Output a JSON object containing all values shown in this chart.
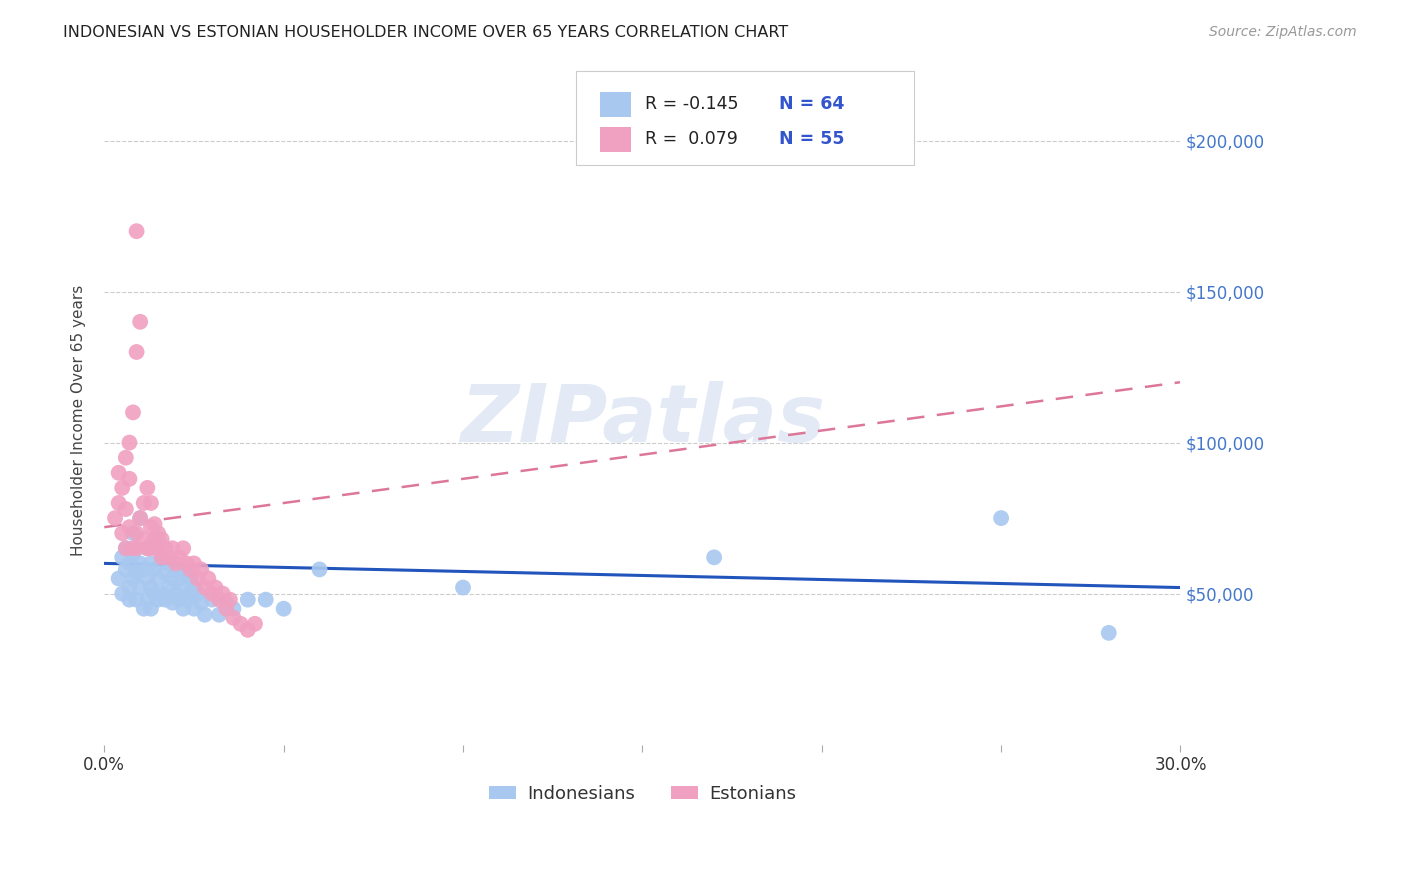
{
  "title": "INDONESIAN VS ESTONIAN HOUSEHOLDER INCOME OVER 65 YEARS CORRELATION CHART",
  "source": "Source: ZipAtlas.com",
  "ylabel": "Householder Income Over 65 years",
  "xlim": [
    0.0,
    0.3
  ],
  "ylim": [
    0,
    215000
  ],
  "yticks": [
    50000,
    100000,
    150000,
    200000
  ],
  "ytick_labels": [
    "$50,000",
    "$100,000",
    "$150,000",
    "$200,000"
  ],
  "indonesian_color": "#a8c8f0",
  "estonian_color": "#f0a0c0",
  "indonesian_line_color": "#2255bb",
  "estonian_line_color": "#dd7799",
  "background_color": "#ffffff",
  "indonesian_scatter_x": [
    0.004,
    0.005,
    0.005,
    0.006,
    0.006,
    0.007,
    0.007,
    0.007,
    0.008,
    0.008,
    0.008,
    0.009,
    0.009,
    0.01,
    0.01,
    0.01,
    0.011,
    0.011,
    0.012,
    0.012,
    0.012,
    0.013,
    0.013,
    0.013,
    0.014,
    0.014,
    0.015,
    0.015,
    0.015,
    0.016,
    0.016,
    0.017,
    0.017,
    0.018,
    0.018,
    0.019,
    0.019,
    0.02,
    0.02,
    0.021,
    0.021,
    0.022,
    0.022,
    0.023,
    0.023,
    0.024,
    0.024,
    0.025,
    0.025,
    0.026,
    0.027,
    0.028,
    0.03,
    0.032,
    0.034,
    0.036,
    0.04,
    0.045,
    0.05,
    0.06,
    0.1,
    0.17,
    0.25,
    0.28
  ],
  "indonesian_scatter_y": [
    55000,
    62000,
    50000,
    58000,
    65000,
    52000,
    60000,
    48000,
    55000,
    63000,
    70000,
    57000,
    48000,
    75000,
    60000,
    52000,
    58000,
    45000,
    65000,
    55000,
    48000,
    60000,
    52000,
    45000,
    58000,
    50000,
    68000,
    55000,
    48000,
    62000,
    50000,
    57000,
    48000,
    60000,
    52000,
    55000,
    47000,
    58000,
    50000,
    55000,
    48000,
    52000,
    45000,
    57000,
    48000,
    55000,
    50000,
    52000,
    45000,
    50000,
    47000,
    43000,
    48000,
    43000,
    47000,
    45000,
    48000,
    48000,
    45000,
    58000,
    52000,
    62000,
    75000,
    37000
  ],
  "estonian_scatter_x": [
    0.003,
    0.004,
    0.004,
    0.005,
    0.005,
    0.006,
    0.006,
    0.006,
    0.007,
    0.007,
    0.007,
    0.008,
    0.008,
    0.009,
    0.009,
    0.009,
    0.01,
    0.01,
    0.011,
    0.011,
    0.012,
    0.012,
    0.013,
    0.013,
    0.013,
    0.014,
    0.014,
    0.015,
    0.015,
    0.016,
    0.016,
    0.017,
    0.018,
    0.019,
    0.02,
    0.021,
    0.022,
    0.023,
    0.024,
    0.025,
    0.026,
    0.027,
    0.028,
    0.029,
    0.03,
    0.031,
    0.032,
    0.033,
    0.034,
    0.035,
    0.036,
    0.038,
    0.04,
    0.042,
    0.009
  ],
  "estonian_scatter_y": [
    75000,
    80000,
    90000,
    70000,
    85000,
    95000,
    78000,
    65000,
    100000,
    88000,
    72000,
    110000,
    65000,
    130000,
    70000,
    65000,
    140000,
    75000,
    80000,
    68000,
    85000,
    65000,
    72000,
    80000,
    65000,
    68000,
    73000,
    65000,
    70000,
    68000,
    62000,
    65000,
    62000,
    65000,
    60000,
    62000,
    65000,
    60000,
    58000,
    60000,
    55000,
    58000,
    52000,
    55000,
    50000,
    52000,
    48000,
    50000,
    45000,
    48000,
    42000,
    40000,
    38000,
    40000,
    170000
  ],
  "indo_trend_x": [
    0.0,
    0.3
  ],
  "indo_trend_y": [
    60000,
    52000
  ],
  "est_trend_x": [
    0.0,
    0.3
  ],
  "est_trend_y": [
    72000,
    120000
  ],
  "watermark": "ZIPatlas",
  "legend_line1_r": "R = -0.145",
  "legend_line1_n": "N = 64",
  "legend_line2_r": "R =  0.079",
  "legend_line2_n": "N = 55"
}
